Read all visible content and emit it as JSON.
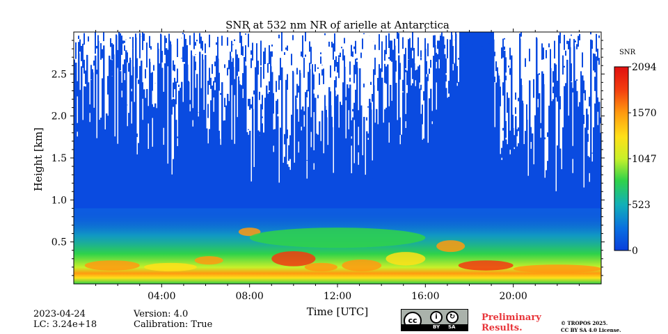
{
  "chart_data": {
    "type": "heatmap",
    "title": "SNR at 532 nm NR of arielle at Antarctica",
    "xlabel": "Time [UTC]",
    "ylabel": "Height [km]",
    "x_range_hours": [
      0,
      24
    ],
    "x_ticks": [
      {
        "value": 4,
        "label": "04:00"
      },
      {
        "value": 8,
        "label": "08:00"
      },
      {
        "value": 12,
        "label": "12:00"
      },
      {
        "value": 16,
        "label": "16:00"
      },
      {
        "value": 20,
        "label": "20:00"
      }
    ],
    "ylim": [
      0,
      3.0
    ],
    "y_ticks": [
      {
        "value": 0.5,
        "label": "0.5"
      },
      {
        "value": 1.0,
        "label": "1.0"
      },
      {
        "value": 1.5,
        "label": "1.5"
      },
      {
        "value": 2.0,
        "label": "2.0"
      },
      {
        "value": 2.5,
        "label": "2.5"
      }
    ],
    "colorbar": {
      "label": "SNR",
      "min": 0,
      "max": 2094,
      "ticks": [
        {
          "value": 0,
          "label": "0"
        },
        {
          "value": 523,
          "label": "523"
        },
        {
          "value": 1047,
          "label": "1047"
        },
        {
          "value": 1570,
          "label": "1570"
        },
        {
          "value": 2094,
          "label": "2094"
        }
      ],
      "colormap": [
        "#0a3fdc",
        "#0a6fe0",
        "#12b0b8",
        "#2fd24a",
        "#c8f02a",
        "#ffe019",
        "#ff9a10",
        "#f23b10",
        "#e01010"
      ]
    },
    "profile": [
      {
        "h": 0.0,
        "snr": 700
      },
      {
        "h": 0.15,
        "snr": 1450
      },
      {
        "h": 0.3,
        "snr": 900
      },
      {
        "h": 0.6,
        "snr": 300
      },
      {
        "h": 1.0,
        "snr": 120
      },
      {
        "h": 1.5,
        "snr": 80
      },
      {
        "h": 3.0,
        "snr": 60
      }
    ]
  },
  "footer": {
    "date": "2023-04-24",
    "lc": "LC: 3.24e+18",
    "version": "Version: 4.0",
    "calibration": "Calibration: True",
    "license_badge": {
      "cc": "cc",
      "by": "BY",
      "sa": "SA"
    },
    "preliminary": [
      "Preliminary",
      "Results."
    ],
    "copyright": [
      "© TROPOS 2025.",
      "CC BY SA 4.0 License."
    ]
  }
}
